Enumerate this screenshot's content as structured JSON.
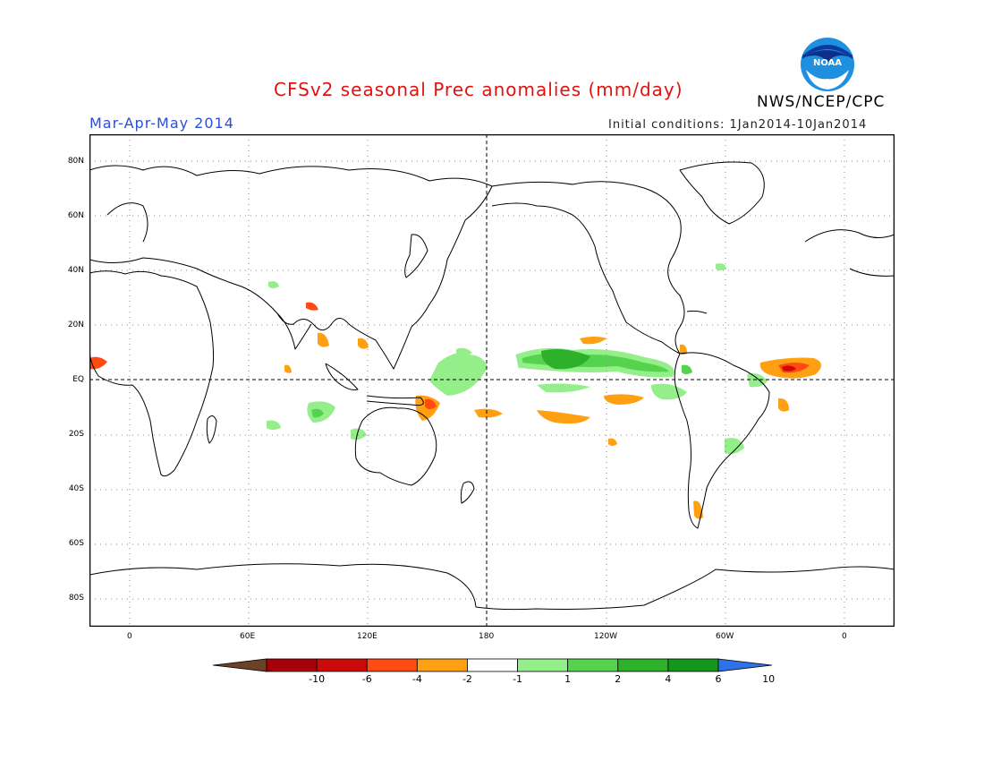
{
  "header": {
    "title": "CFSv2 seasonal Prec anomalies (mm/day)",
    "season": "Mar-Apr-May 2014",
    "initial_conditions": "Initial conditions: 1Jan2014-10Jan2014",
    "agency": "NWS/NCEP/CPC",
    "logo_text": "NOAA"
  },
  "axes": {
    "lat_labels": [
      "80N",
      "60N",
      "40N",
      "20N",
      "EQ",
      "20S",
      "40S",
      "60S",
      "80S"
    ],
    "lon_labels": [
      "0",
      "60E",
      "120E",
      "180",
      "120W",
      "60W",
      "0"
    ]
  },
  "colorbar": {
    "labels": [
      "-10",
      "-6",
      "-4",
      "-2",
      "-1",
      "1",
      "2",
      "4",
      "6",
      "10"
    ],
    "colors": [
      "#6b4226",
      "#a8000b",
      "#cc0a0a",
      "#ff4a12",
      "#ff9f12",
      "#ffffff",
      "#94ee8a",
      "#55d34f",
      "#2db02a",
      "#13961a",
      "#2f72e8"
    ]
  }
}
